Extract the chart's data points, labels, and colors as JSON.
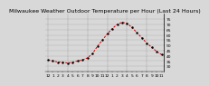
{
  "hours": [
    0,
    1,
    2,
    3,
    4,
    5,
    6,
    7,
    8,
    9,
    10,
    11,
    12,
    13,
    14,
    15,
    16,
    17,
    18,
    19,
    20,
    21,
    22,
    23
  ],
  "temps": [
    36,
    35,
    34,
    34,
    33,
    34,
    35,
    36,
    38,
    42,
    49,
    55,
    61,
    66,
    70,
    72,
    71,
    67,
    62,
    57,
    52,
    48,
    44,
    41
  ],
  "line_color": "#cc0000",
  "marker_color": "#000000",
  "bg_color": "#d8d8d8",
  "plot_bg_color": "#d8d8d8",
  "title": "Milwaukee Weather Outdoor Temperature per Hour (Last 24 Hours)",
  "ylim": [
    25,
    80
  ],
  "yticks": [
    30,
    35,
    40,
    45,
    50,
    55,
    60,
    65,
    70,
    75
  ],
  "xtick_labels": [
    "12",
    "1",
    "2",
    "3",
    "4",
    "5",
    "6",
    "7",
    "8",
    "9",
    "10",
    "11",
    "12",
    "1",
    "2",
    "3",
    "4",
    "5",
    "6",
    "7",
    "8",
    "9",
    "10",
    "11"
  ],
  "grid_color": "#888888",
  "vgrid_hours": [
    0,
    4,
    8,
    12,
    16,
    20
  ],
  "title_fontsize": 4.5,
  "tick_fontsize": 3.2
}
